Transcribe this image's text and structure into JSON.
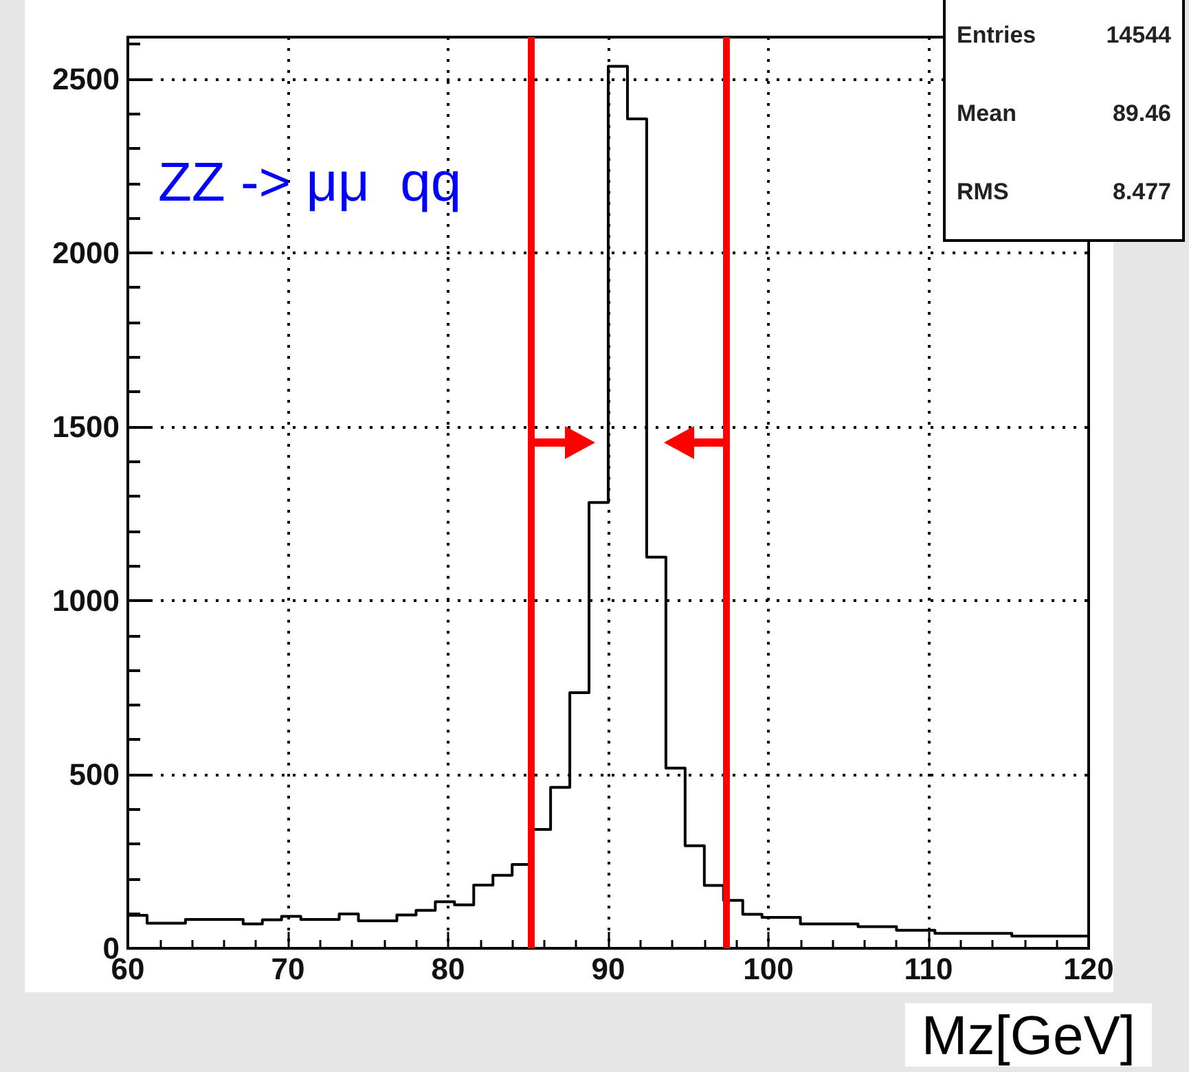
{
  "chart_data": {
    "type": "histogram",
    "xlabel": "Mz[GeV]",
    "annotations": [
      "ZZ -> μμ  qq",
      "Entries",
      "14544",
      "Mean",
      "89.46",
      "RMS",
      "8.477"
    ],
    "bins": [
      60,
      61.2,
      62.4,
      63.6,
      64.8,
      66,
      67.2,
      68.4,
      69.6,
      70.8,
      72,
      73.2,
      74.4,
      75.6,
      76.8,
      78,
      79.2,
      80.4,
      81.6,
      82.8,
      84,
      85.2,
      86.4,
      87.6,
      88.8,
      90,
      91.2,
      92.4,
      93.6,
      94.8,
      96,
      97.2,
      98.4,
      99.6,
      100.8,
      102,
      103.2,
      104.4,
      105.6,
      106.8,
      108,
      109.2,
      110.4,
      111.6,
      112.8,
      114,
      115.2,
      116.4,
      117.6,
      118.8,
      120
    ],
    "values": [
      95,
      72,
      72,
      83,
      83,
      83,
      70,
      82,
      92,
      83,
      83,
      99,
      79,
      79,
      96,
      109,
      134,
      125,
      182,
      210,
      241,
      342,
      463,
      735,
      1282,
      2536,
      2385,
      1125,
      518,
      295,
      181,
      138,
      98,
      89,
      89,
      70,
      70,
      70,
      62,
      62,
      52,
      52,
      43,
      43,
      43,
      43,
      35,
      35,
      35,
      35
    ],
    "color": "#000000",
    "xlim": [
      60,
      120
    ],
    "xticks": [
      60,
      70,
      80,
      90,
      100,
      110,
      120
    ],
    "ylim": [
      0,
      2620
    ],
    "yticks": [
      0,
      500,
      1000,
      1500,
      2000,
      2500
    ],
    "grid": true,
    "ref_lines": [
      {
        "axis": "x",
        "value": 85.2,
        "color": "#ff0000"
      },
      {
        "axis": "x",
        "value": 97.4,
        "color": "#ff0000"
      }
    ]
  }
}
